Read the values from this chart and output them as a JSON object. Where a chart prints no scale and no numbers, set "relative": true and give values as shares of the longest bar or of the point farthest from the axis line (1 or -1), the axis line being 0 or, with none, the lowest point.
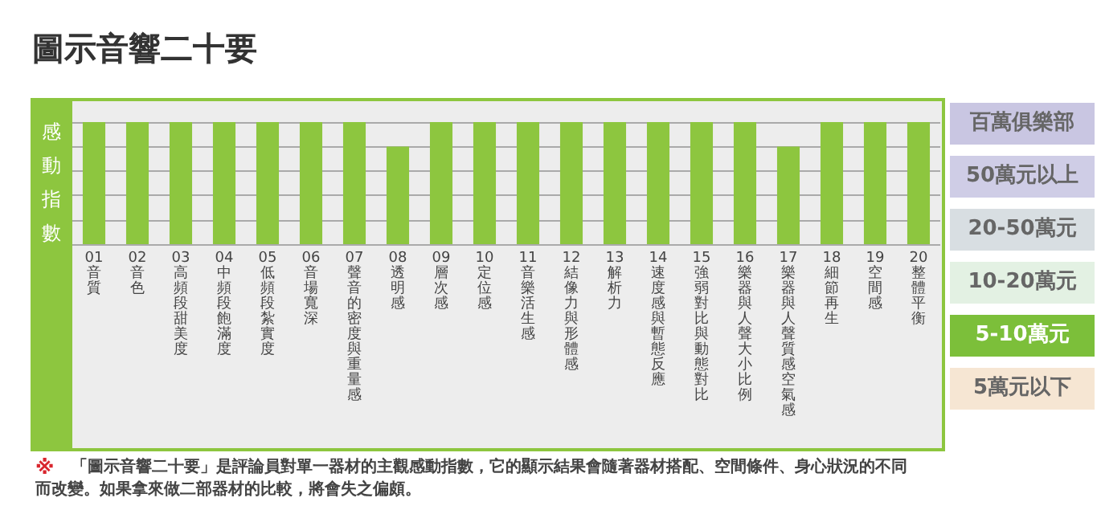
{
  "chart_data": [
    {
      "type": "bar",
      "title": "圖示音響二十要",
      "ylabel": "感動指數",
      "relative": true,
      "grid": "y",
      "color": "#8dc63f",
      "categories": [
        "01 音質",
        "02 音色",
        "03 高頻段甜美度",
        "04 中頻段飽滿度",
        "05 低頻段紮實度",
        "06 音場寬深",
        "07 聲音的密度與重量感",
        "08 透明感",
        "09 層次感",
        "10 定位感",
        "11 音樂活生感",
        "12 結像力與形體感",
        "13 解析力",
        "14 速度感與暫態反應",
        "15 強弱對比與動態對比",
        "16 樂器與人聲大小比例",
        "17 樂器與人聲質感空氣感",
        "18 細節再生",
        "19 空間感",
        "20 整體平衡"
      ],
      "values": [
        1,
        1,
        1,
        1,
        1,
        1,
        1,
        0.8,
        1,
        1,
        1,
        1,
        1,
        1,
        1,
        1,
        0.8,
        1,
        1,
        1
      ],
      "annotations": [
        "※ 「圖示音響二十要」是評論員對單一器材的主觀感動指數，它的顯示結果會隨著器材搭配、空間條件、身心狀況的不同而改變。如果拿來做二部器材的比較，將會失之偏頗。"
      ]
    },
    {
      "type": "other",
      "categories": [
        "百萬俱樂部",
        "50萬元以上",
        "20-50萬元",
        "10-20萬元",
        "5-10萬元",
        "5萬元以下"
      ],
      "colors": [
        "#c9c6e2",
        "#cfcde6",
        "#d8dee2",
        "#e3f1e3",
        "#7cbf3a",
        "#f6e6d3"
      ]
    }
  ]
}
